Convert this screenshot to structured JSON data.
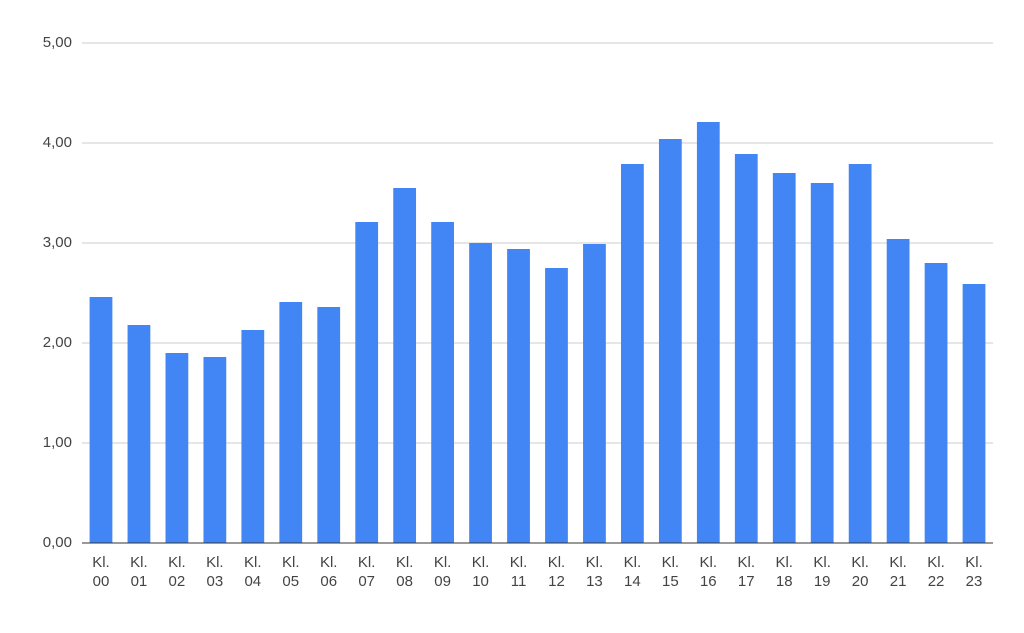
{
  "chart_data": {
    "type": "bar",
    "categories": [
      "Kl. 00",
      "Kl. 01",
      "Kl. 02",
      "Kl. 03",
      "Kl. 04",
      "Kl. 05",
      "Kl. 06",
      "Kl. 07",
      "Kl. 08",
      "Kl. 09",
      "Kl. 10",
      "Kl. 11",
      "Kl. 12",
      "Kl. 13",
      "Kl. 14",
      "Kl. 15",
      "Kl. 16",
      "Kl. 17",
      "Kl. 18",
      "Kl. 19",
      "Kl. 20",
      "Kl. 21",
      "Kl. 22",
      "Kl. 23"
    ],
    "values": [
      2.46,
      2.18,
      1.9,
      1.86,
      2.13,
      2.41,
      2.36,
      3.21,
      3.55,
      3.21,
      3.0,
      2.94,
      2.75,
      2.99,
      3.79,
      4.04,
      4.21,
      3.89,
      3.7,
      3.6,
      3.79,
      3.04,
      2.8,
      2.59
    ],
    "color": "#4285f4",
    "ylim": [
      0,
      5
    ],
    "yticks": [
      {
        "value": 0,
        "label": "0,00"
      },
      {
        "value": 1,
        "label": "1,00"
      },
      {
        "value": 2,
        "label": "2,00"
      },
      {
        "value": 3,
        "label": "3,00"
      },
      {
        "value": 4,
        "label": "4,00"
      },
      {
        "value": 5,
        "label": "5,00"
      }
    ],
    "grid": true
  }
}
